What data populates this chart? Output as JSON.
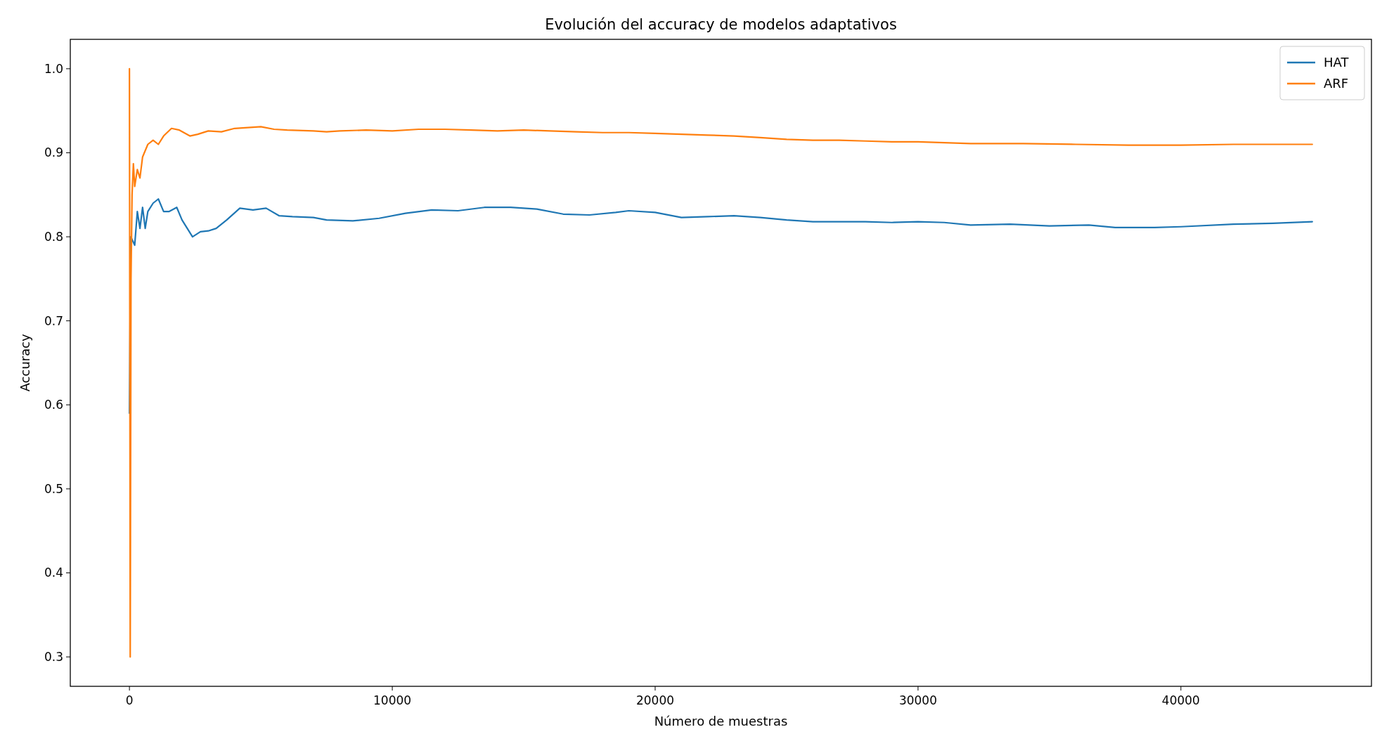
{
  "chart_data": {
    "type": "line",
    "title": "Evolución del accuracy de modelos adaptativos",
    "xlabel": "Número de muestras",
    "ylabel": "Accuracy",
    "xlim": [
      -2250,
      47250
    ],
    "ylim": [
      0.265,
      1.035
    ],
    "xticks": [
      0,
      10000,
      20000,
      30000,
      40000
    ],
    "yticks": [
      {
        "value": 0.3,
        "label": "0.3"
      },
      {
        "value": 0.4,
        "label": "0.4"
      },
      {
        "value": 0.5,
        "label": "0.5"
      },
      {
        "value": 0.6,
        "label": "0.6"
      },
      {
        "value": 0.7,
        "label": "0.7"
      },
      {
        "value": 0.8,
        "label": "0.8"
      },
      {
        "value": 0.9,
        "label": "0.9"
      },
      {
        "value": 1.0,
        "label": "1.0"
      }
    ],
    "legend": "top right",
    "grid": false,
    "series": [
      {
        "name": "HAT",
        "color": "#1f77b4",
        "x": [
          0,
          50,
          200,
          300,
          400,
          500,
          600,
          700,
          900,
          1100,
          1300,
          1500,
          1800,
          2000,
          2200,
          2400,
          2700,
          3000,
          3300,
          3700,
          4200,
          4700,
          5200,
          5700,
          6200,
          7000,
          7500,
          8500,
          9500,
          10500,
          11500,
          12500,
          13500,
          14500,
          15500,
          16500,
          17500,
          18500,
          19000,
          20000,
          21000,
          22000,
          23000,
          24000,
          25000,
          26000,
          27000,
          28000,
          29000,
          30000,
          31000,
          32000,
          33500,
          35000,
          36500,
          37500,
          39000,
          40000,
          42000,
          43500,
          45000
        ],
        "values": [
          0.59,
          0.8,
          0.79,
          0.83,
          0.81,
          0.835,
          0.81,
          0.83,
          0.84,
          0.845,
          0.83,
          0.83,
          0.835,
          0.82,
          0.81,
          0.8,
          0.806,
          0.807,
          0.81,
          0.82,
          0.834,
          0.832,
          0.834,
          0.825,
          0.824,
          0.823,
          0.82,
          0.819,
          0.822,
          0.828,
          0.832,
          0.831,
          0.835,
          0.835,
          0.833,
          0.827,
          0.826,
          0.829,
          0.831,
          0.829,
          0.823,
          0.824,
          0.825,
          0.823,
          0.82,
          0.818,
          0.818,
          0.818,
          0.817,
          0.818,
          0.817,
          0.814,
          0.815,
          0.813,
          0.814,
          0.811,
          0.811,
          0.812,
          0.815,
          0.816,
          0.818
        ]
      },
      {
        "name": "ARF",
        "color": "#ff7f0e",
        "x": [
          0,
          30,
          60,
          100,
          150,
          200,
          300,
          400,
          500,
          700,
          900,
          1100,
          1300,
          1600,
          1900,
          2300,
          2600,
          3000,
          3500,
          4000,
          4500,
          5000,
          5500,
          6000,
          7000,
          7500,
          8000,
          9000,
          10000,
          11000,
          12000,
          13000,
          14000,
          15000,
          16000,
          17000,
          18000,
          19000,
          20000,
          21000,
          22000,
          23000,
          24000,
          25000,
          26000,
          27000,
          28000,
          29000,
          30000,
          31000,
          32000,
          34000,
          36000,
          38000,
          40000,
          42000,
          45000
        ],
        "values": [
          1.0,
          0.3,
          0.75,
          0.85,
          0.887,
          0.86,
          0.88,
          0.87,
          0.895,
          0.91,
          0.915,
          0.91,
          0.92,
          0.929,
          0.927,
          0.92,
          0.922,
          0.926,
          0.925,
          0.929,
          0.93,
          0.931,
          0.928,
          0.927,
          0.926,
          0.925,
          0.926,
          0.927,
          0.926,
          0.928,
          0.928,
          0.927,
          0.926,
          0.927,
          0.926,
          0.925,
          0.924,
          0.924,
          0.923,
          0.922,
          0.921,
          0.92,
          0.918,
          0.916,
          0.915,
          0.915,
          0.914,
          0.913,
          0.913,
          0.912,
          0.911,
          0.911,
          0.91,
          0.909,
          0.909,
          0.91,
          0.91
        ]
      }
    ]
  }
}
